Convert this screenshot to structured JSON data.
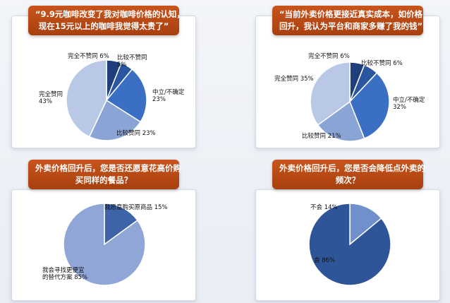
{
  "charts": [
    {
      "question_lines": [
        "“9.9元咖啡改变了我对咖啡价格的认知，",
        "现在15元以上的咖啡我觉得太贵了”"
      ]
    },
    {
      "question_lines": [
        "“当前外卖价格更接近真实成本，如价格",
        "回升，我认为平台和商家多赚了我的钱”"
      ]
    },
    {
      "question_lines": [
        "外卖价格回升后，您是否还愿意花高价购",
        "买同样的餐品？"
      ]
    },
    {
      "question_lines": [
        "外卖价格回升后，您是否会降低点外卖的",
        "频次？"
      ]
    }
  ],
  "chart_data": [
    {
      "type": "pie",
      "title": "“9.9元咖啡改变了我对咖啡价格的认知，现在15元以上的咖啡我觉得太贵了”",
      "slices": [
        {
          "label": "完全不赞同",
          "value": 6,
          "value_text": "6%",
          "color": "#1f3f7a"
        },
        {
          "label": "比较不赞同",
          "value": 5,
          "value_text": "5%",
          "color": "#2a56a0"
        },
        {
          "label": "中立/不确定",
          "value": 23,
          "value_text": "23%",
          "color": "#3a6fc4"
        },
        {
          "label": "比较赞同",
          "value": 23,
          "value_text": "23%",
          "color": "#8aa4d6"
        },
        {
          "label": "完全赞同",
          "value": 43,
          "value_text": "43%",
          "color": "#b9c8e6"
        }
      ]
    },
    {
      "type": "pie",
      "title": "“当前外卖价格更接近真实成本，如价格回升，我认为平台和商家多赚了我的钱”",
      "slices": [
        {
          "label": "完全不赞同",
          "value": 6,
          "value_text": "6%",
          "color": "#1f3f7a"
        },
        {
          "label": "比较不赞同",
          "value": 6,
          "value_text": "6%",
          "color": "#2a56a0"
        },
        {
          "label": "中立/不确定",
          "value": 32,
          "value_text": "32%",
          "color": "#3a6fc4"
        },
        {
          "label": "比较赞同",
          "value": 21,
          "value_text": "21%",
          "color": "#8aa4d6"
        },
        {
          "label": "完全赞同",
          "value": 35,
          "value_text": "35%",
          "color": "#b9c8e6"
        }
      ]
    },
    {
      "type": "pie",
      "title": "外卖价格回升后，您是否还愿意花高价购买同样的餐品？",
      "slices": [
        {
          "label": "我愿意购买原商品",
          "value": 15,
          "value_text": "15%",
          "color": "#3d63a8"
        },
        {
          "label": "我会寻找更便宜的替代方案",
          "value": 85,
          "value_text": "85%",
          "color": "#8fa6d6"
        }
      ]
    },
    {
      "type": "pie",
      "title": "外卖价格回升后，您是否会降低点外卖的频次？",
      "slices": [
        {
          "label": "不会",
          "value": 14,
          "value_text": "14%",
          "color": "#6f90cc"
        },
        {
          "label": "会",
          "value": 86,
          "value_text": "86%",
          "color": "#2f5599"
        }
      ]
    }
  ]
}
